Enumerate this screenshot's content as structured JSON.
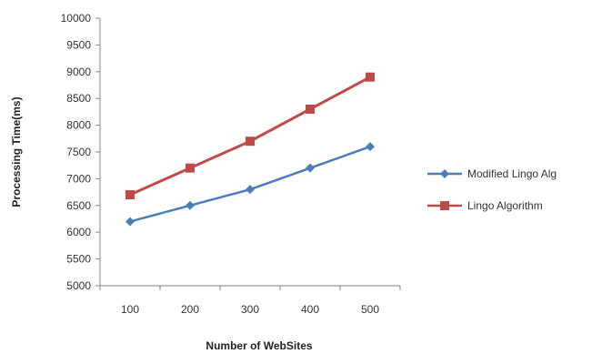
{
  "chart_data": {
    "type": "line",
    "title": "",
    "xlabel": "Number of WebSites",
    "ylabel": "Processing Time(ms)",
    "categories": [
      "100",
      "200",
      "300",
      "400",
      "500"
    ],
    "y_ticks": [
      "5000",
      "5500",
      "6000",
      "6500",
      "7000",
      "7500",
      "8000",
      "8500",
      "9000",
      "9500",
      "10000"
    ],
    "ylim": [
      5000,
      10000
    ],
    "grid": false,
    "legend_position": "right",
    "series": [
      {
        "name": "Modified Lingo Alg",
        "color": "#4a7ebb",
        "marker": "diamond",
        "values": [
          6200,
          6500,
          6800,
          7200,
          7600
        ]
      },
      {
        "name": "Lingo Algorithm",
        "color": "#be4b48",
        "marker": "square",
        "values": [
          6700,
          7200,
          7700,
          8300,
          8900
        ]
      }
    ]
  }
}
